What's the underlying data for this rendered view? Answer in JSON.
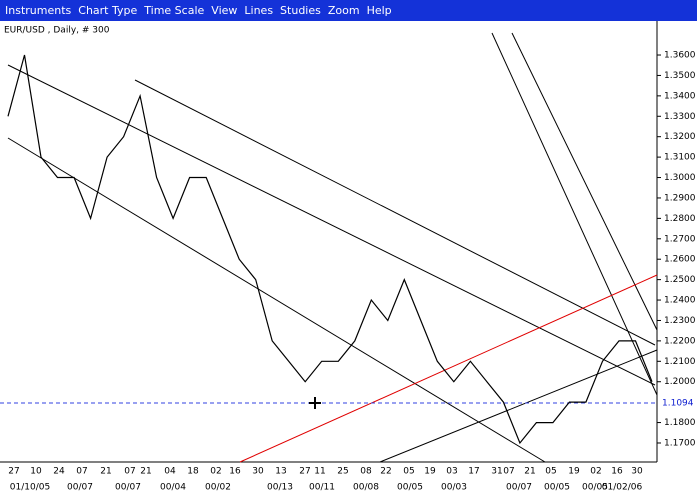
{
  "menu": [
    "Instruments",
    "Chart Type",
    "Time Scale",
    "View",
    "Lines",
    "Studies",
    "Zoom",
    "Help"
  ],
  "chart_data": {
    "type": "line",
    "title": "EUR/USD , Daily, # 300",
    "current_price": "1.1094",
    "ylim": [
      1.16,
      1.37
    ],
    "yticks": [
      {
        "value": 1.36,
        "label": "1.3600"
      },
      {
        "value": 1.35,
        "label": "1.3500"
      },
      {
        "value": 1.34,
        "label": "1.3400"
      },
      {
        "value": 1.33,
        "label": "1.3300"
      },
      {
        "value": 1.32,
        "label": "1.3200"
      },
      {
        "value": 1.31,
        "label": "1.3100"
      },
      {
        "value": 1.3,
        "label": "1.3000"
      },
      {
        "value": 1.29,
        "label": "1.2900"
      },
      {
        "value": 1.28,
        "label": "1.2800"
      },
      {
        "value": 1.27,
        "label": "1.2700"
      },
      {
        "value": 1.26,
        "label": "1.2600"
      },
      {
        "value": 1.25,
        "label": "1.2500"
      },
      {
        "value": 1.24,
        "label": "1.2400"
      },
      {
        "value": 1.23,
        "label": "1.2300"
      },
      {
        "value": 1.22,
        "label": "1.2200"
      },
      {
        "value": 1.21,
        "label": "1.2100"
      },
      {
        "value": 1.2,
        "label": "1.2000"
      },
      {
        "value": 1.18,
        "label": "1.1800"
      },
      {
        "value": 1.17,
        "label": "1.1700"
      }
    ],
    "x_labels_top": [
      "27",
      "10",
      "24",
      "07",
      "21",
      "07",
      "21",
      "04",
      "18",
      "02",
      "16",
      "30",
      "13",
      "27",
      "11",
      "25",
      "08",
      "22",
      "05",
      "19",
      "03",
      "17",
      "31",
      "07",
      "21",
      "05",
      "19",
      "02",
      "16",
      "30"
    ],
    "x_labels_bottom": [
      "01/10/05",
      "00/07",
      "00/07",
      "00/04",
      "00/02",
      "00/13",
      "00/11",
      "00/08",
      "00/05",
      "00/03",
      "00/07",
      "00/05",
      "00/05",
      "01/02/06"
    ],
    "color": "#000000",
    "values": [
      1.33,
      1.36,
      1.31,
      1.3,
      1.3,
      1.28,
      1.31,
      1.32,
      1.34,
      1.3,
      1.28,
      1.3,
      1.3,
      1.28,
      1.26,
      1.25,
      1.22,
      1.21,
      1.2,
      1.21,
      1.21,
      1.22,
      1.24,
      1.23,
      1.25,
      1.23,
      1.21,
      1.2,
      1.21,
      1.2,
      1.19,
      1.17,
      1.18,
      1.18,
      1.19,
      1.19,
      1.21,
      1.22,
      1.22,
      1.2
    ]
  }
}
